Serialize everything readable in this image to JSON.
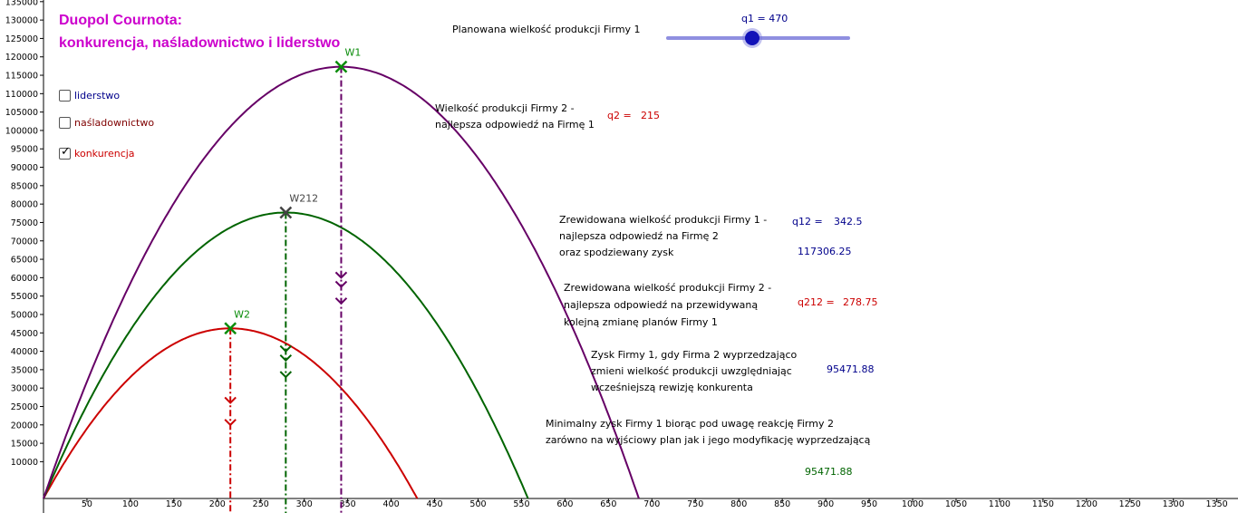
{
  "title": {
    "line1": "Duopol Cournota:",
    "line2": "konkurencja, naśladownictwo i liderstwo"
  },
  "slider": {
    "caption": "Planowana wielkość produkcji Firmy 1",
    "value_label": "q1 = 470",
    "min": 0,
    "max": 1000,
    "value": 470
  },
  "checkboxes": [
    {
      "label": "liderstwo",
      "checked": false,
      "color": "#00008b"
    },
    {
      "label": "naśladownictwo",
      "checked": false,
      "color": "#7f0000"
    },
    {
      "label": "konkurencja",
      "checked": true,
      "color": "#cc0000"
    }
  ],
  "texts": {
    "q2_desc": [
      "Wielkość produkcji Firmy 2 -",
      "najlepsza odpowiedź na Firmę 1"
    ],
    "q2_label": "q2 =",
    "q2_value": "215",
    "q12_desc": [
      "Zrewidowana wielkość produkcji Firmy 1 -",
      "najlepsza odpowiedź na Firmę 2",
      "oraz spodziewany zysk"
    ],
    "q12_label": "q12 =",
    "q12_value": "342.5",
    "profit_value": "117306.25",
    "q212_desc": [
      "Zrewidowana wielkość produkcji Firmy 2 -",
      "najlepsza odpowiedź na przewidywaną",
      "kolejną zmianę planów Firmy 1"
    ],
    "q212_label": "q212 =",
    "q212_value": "278.75",
    "zysk_desc": [
      "Zysk Firmy 1, gdy Firma 2 wyprzedzająco",
      "zmieni wielkość produkcji uwzględniając",
      "wcześniejszą rewizję konkurenta"
    ],
    "zysk_value": "95471.88",
    "min_desc": [
      "Minimalny zysk Firmy 1 biorąc pod uwagę reakcję Firmy 2",
      "zarówno na wyjściowy plan jak i jego modyfikację  wyprzedzającą"
    ],
    "min_value": "95471.88"
  },
  "colors": {
    "red": "#cc0000",
    "green": "#006400",
    "purple": "#660066",
    "point_green": "#0a8c0a",
    "point_gray": "#444444",
    "navy": "#00008b",
    "title": "#cc00cc"
  },
  "chart_data": {
    "type": "line",
    "x_ticks": [
      50,
      100,
      150,
      200,
      250,
      300,
      350,
      400,
      450,
      500,
      550,
      600,
      650,
      700,
      750,
      800,
      850,
      900,
      950,
      1000,
      1050,
      1100,
      1150,
      1200,
      1250,
      1300,
      1350
    ],
    "y_ticks": [
      10000,
      15000,
      20000,
      25000,
      30000,
      35000,
      40000,
      45000,
      50000,
      55000,
      60000,
      65000,
      70000,
      75000,
      80000,
      85000,
      90000,
      95000,
      100000,
      105000,
      110000,
      115000,
      120000,
      125000,
      130000,
      135000
    ],
    "series": [
      {
        "color": "#cc0000",
        "peak_x": 215,
        "peak_y": 46225
      },
      {
        "color": "#006400",
        "peak_x": 278.75,
        "peak_y": 77700.06
      },
      {
        "color": "#660066",
        "peak_x": 342.5,
        "peak_y": 117306.25
      }
    ],
    "points": [
      {
        "label": "W1",
        "x": 342.5,
        "y": 117306.25,
        "color": "#0a8c0a"
      },
      {
        "label": "W212",
        "x": 278.75,
        "y": 77700.06,
        "color": "#444444"
      },
      {
        "label": "W2",
        "x": 215,
        "y": 46225,
        "color": "#0a8c0a"
      }
    ],
    "dashed_lines": [
      {
        "x": 342.5,
        "color": "#660066",
        "arrow_y": [
          60000,
          57500,
          53000
        ]
      },
      {
        "x": 278.75,
        "color": "#006400",
        "arrow_y": [
          40000,
          37500,
          33000
        ]
      },
      {
        "x": 215,
        "color": "#cc0000",
        "arrow_y": [
          26000,
          20000
        ]
      }
    ]
  }
}
